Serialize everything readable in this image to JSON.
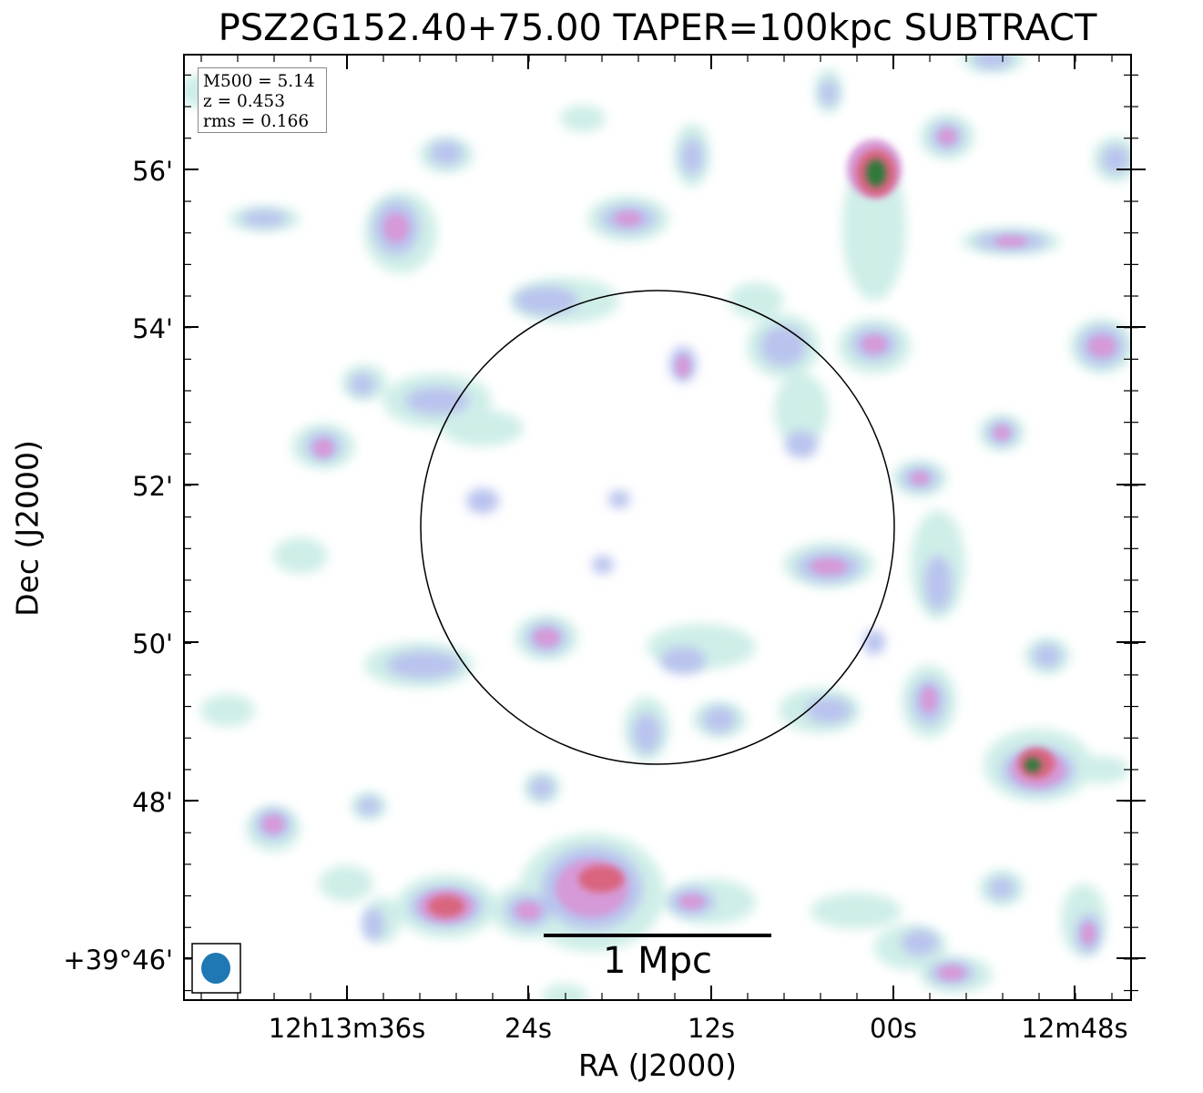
{
  "title": "PSZ2G152.40+75.00 TAPER=100kpc SUBTRACT",
  "axes": {
    "xlabel": "RA (J2000)",
    "ylabel": "Dec (J2000)",
    "y_ticks": [
      "56'",
      "54'",
      "52'",
      "50'",
      "48'",
      "+39°46'"
    ],
    "x_ticks": [
      "12h13m36s",
      "24s",
      "12s",
      "00s",
      "12m48s"
    ]
  },
  "info": {
    "mass": "M500 = 5.14",
    "redshift": "z = 0.453",
    "rms": "rms = 0.166"
  },
  "scalebar": {
    "label": "1 Mpc"
  },
  "colors": {
    "faint_emission": "#cfeee8",
    "low_emission": "#b9c3ee",
    "mid_emission": "#d69ad8",
    "high_emission": "#d9657f",
    "peak_emission": "#2f7a3a",
    "beam": "#1f77b4",
    "circle": "#000000",
    "info_border": "#888888"
  }
}
